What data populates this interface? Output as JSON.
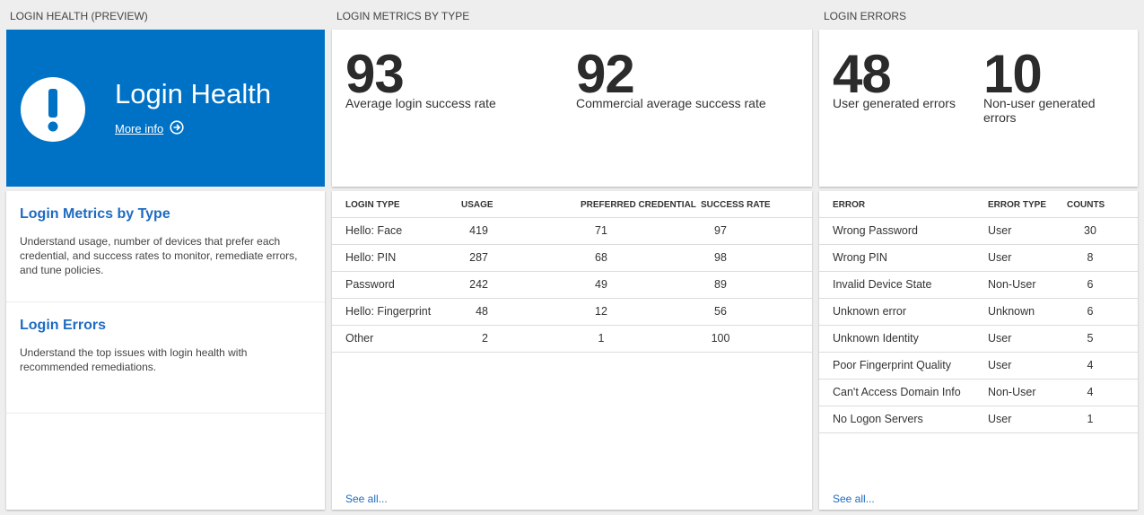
{
  "health": {
    "header": "LOGIN HEALTH (PREVIEW)",
    "tile": {
      "title": "Login Health",
      "link": "More info"
    },
    "items": [
      {
        "title": "Login Metrics by Type",
        "description": "Understand usage, number of devices that prefer each credential, and success rates to monitor, remediate errors, and tune policies."
      },
      {
        "title": "Login Errors",
        "description": "Understand the top issues with login health with recommended remediations."
      }
    ]
  },
  "metrics": {
    "header": "LOGIN METRICS BY TYPE",
    "kpis": [
      {
        "value": 93,
        "label": "Average login success rate"
      },
      {
        "value": 92,
        "label": "Commercial average success rate"
      }
    ],
    "table": {
      "columns": [
        "LOGIN TYPE",
        "USAGE",
        "PREFERRED CREDENTIAL",
        "SUCCESS RATE"
      ],
      "rows": [
        [
          "Hello: Face",
          419,
          71,
          97
        ],
        [
          "Hello: PIN",
          287,
          68,
          98
        ],
        [
          "Password",
          242,
          49,
          89
        ],
        [
          "Hello: Fingerprint",
          48,
          12,
          56
        ],
        [
          "Other",
          2,
          1,
          100
        ]
      ]
    },
    "see_all": "See all..."
  },
  "errors": {
    "header": "LOGIN ERRORS",
    "kpis": [
      {
        "value": 48,
        "label": "User generated errors"
      },
      {
        "value": 10,
        "label": "Non-user generated errors"
      }
    ],
    "table": {
      "columns": [
        "ERROR",
        "ERROR TYPE",
        "COUNTS"
      ],
      "rows": [
        [
          "Wrong Password",
          "User",
          30
        ],
        [
          "Wrong PIN",
          "User",
          8
        ],
        [
          "Invalid Device State",
          "Non-User",
          6
        ],
        [
          "Unknown error",
          "Unknown",
          6
        ],
        [
          "Unknown Identity",
          "User",
          5
        ],
        [
          "Poor Fingerprint Quality",
          "User",
          4
        ],
        [
          "Can't Access Domain Info",
          "Non-User",
          4
        ],
        [
          "No Logon Servers",
          "User",
          1
        ]
      ]
    },
    "see_all": "See all..."
  }
}
